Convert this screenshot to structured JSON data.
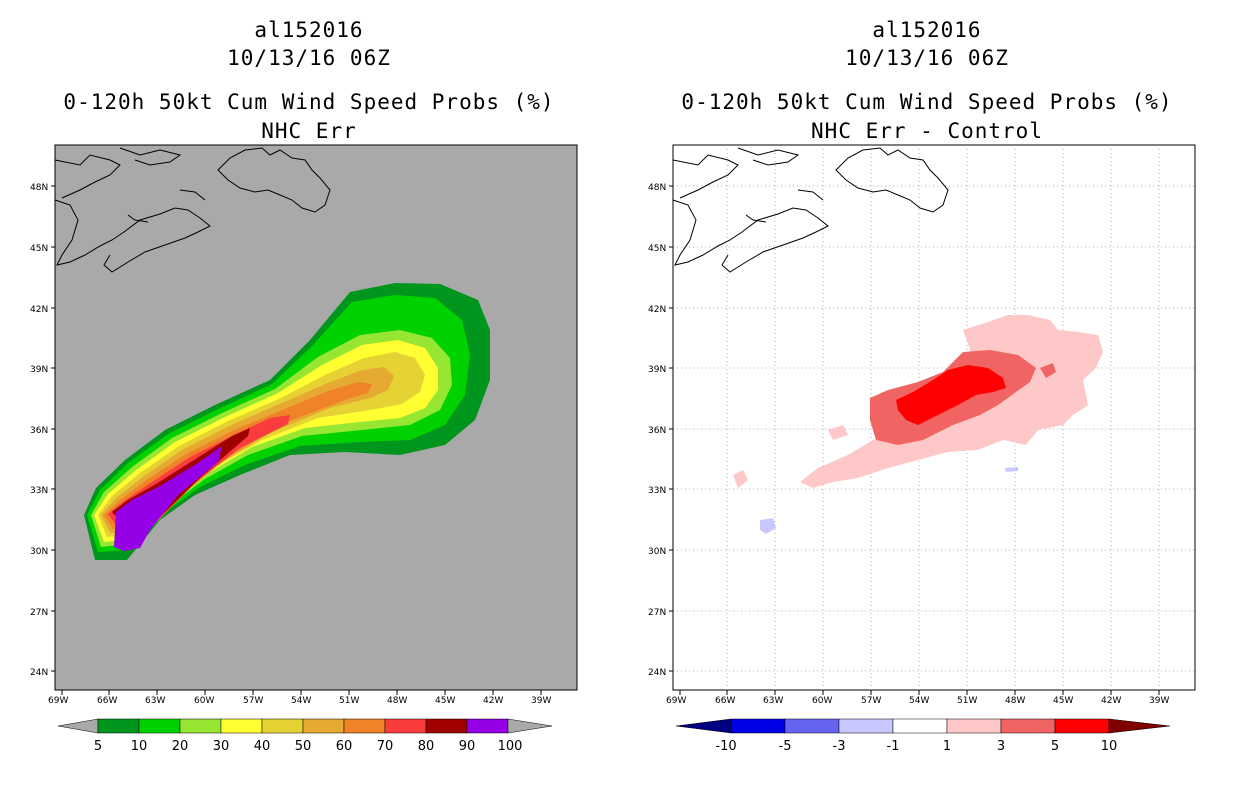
{
  "left": {
    "title": {
      "line1": "al152016",
      "line2": "10/13/16 06Z",
      "line3": "0-120h 50kt Cum Wind Speed Probs (%)",
      "line4": "NHC Err"
    },
    "background": "#a9a9a9",
    "colorbar": {
      "colors": [
        "#00961e",
        "#00d200",
        "#96e632",
        "#ffff32",
        "#e6d232",
        "#e6aa32",
        "#f08228",
        "#fa3c3c",
        "#a00000",
        "#9600e6"
      ],
      "labels": [
        "5",
        "10",
        "20",
        "30",
        "40",
        "50",
        "60",
        "70",
        "80",
        "90",
        "100"
      ]
    }
  },
  "right": {
    "title": {
      "line1": "al152016",
      "line2": "10/13/16 06Z",
      "line3": "0-120h 50kt Cum Wind Speed Probs (%)",
      "line4": "NHC Err - Control"
    },
    "background": "#ffffff",
    "colorbar": {
      "colors": [
        "#0000e6",
        "#6464f0",
        "#c8c8ff",
        "#ffffff",
        "#ffc8c8",
        "#f06464",
        "#ff0000"
      ],
      "labels": [
        "-10",
        "-5",
        "-3",
        "-1",
        "1",
        "3",
        "5",
        "10"
      ],
      "low_arrow": "#000080",
      "high_arrow": "#800000"
    }
  },
  "axes": {
    "x_ticks": [
      "69W",
      "66W",
      "63W",
      "60W",
      "57W",
      "54W",
      "51W",
      "48W",
      "45W",
      "42W",
      "39W"
    ],
    "y_ticks": [
      "48N",
      "45N",
      "42N",
      "39N",
      "36N",
      "33N",
      "30N",
      "27N",
      "24N"
    ]
  }
}
